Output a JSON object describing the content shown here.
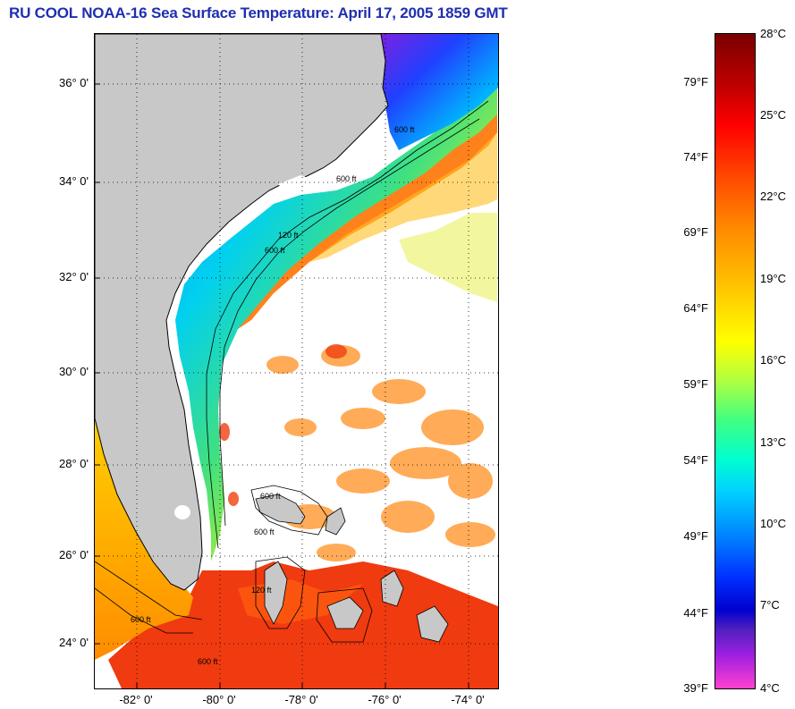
{
  "title": "RU COOL  NOAA-16  Sea Surface Temperature:  April 17, 2005 1859 GMT",
  "lat_labels": [
    "36° 0'",
    "34° 0'",
    "32° 0'",
    "30° 0'",
    "28° 0'",
    "26° 0'",
    "24° 0'"
  ],
  "lon_labels": [
    "-82° 0'",
    "-80° 0'",
    "-78° 0'",
    "-76° 0'",
    "-74° 0'"
  ],
  "contour_labels": [
    "600 ft",
    "120 ft",
    "600 ft",
    "600 ft",
    "600 ft",
    "600 ft",
    "600 ft",
    "120 ft",
    "600 ft"
  ],
  "colorbar": {
    "fahrenheit": [
      "79°F",
      "74°F",
      "69°F",
      "64°F",
      "59°F",
      "54°F",
      "49°F",
      "44°F",
      "39°F"
    ],
    "celsius": [
      "28°C",
      "25°C",
      "22°C",
      "19°C",
      "16°C",
      "13°C",
      "10°C",
      "7°C",
      "4°C"
    ]
  },
  "colors": {
    "title": "#1f2fb0",
    "land": "#c8c8c8",
    "cloud": "#ffffff"
  }
}
